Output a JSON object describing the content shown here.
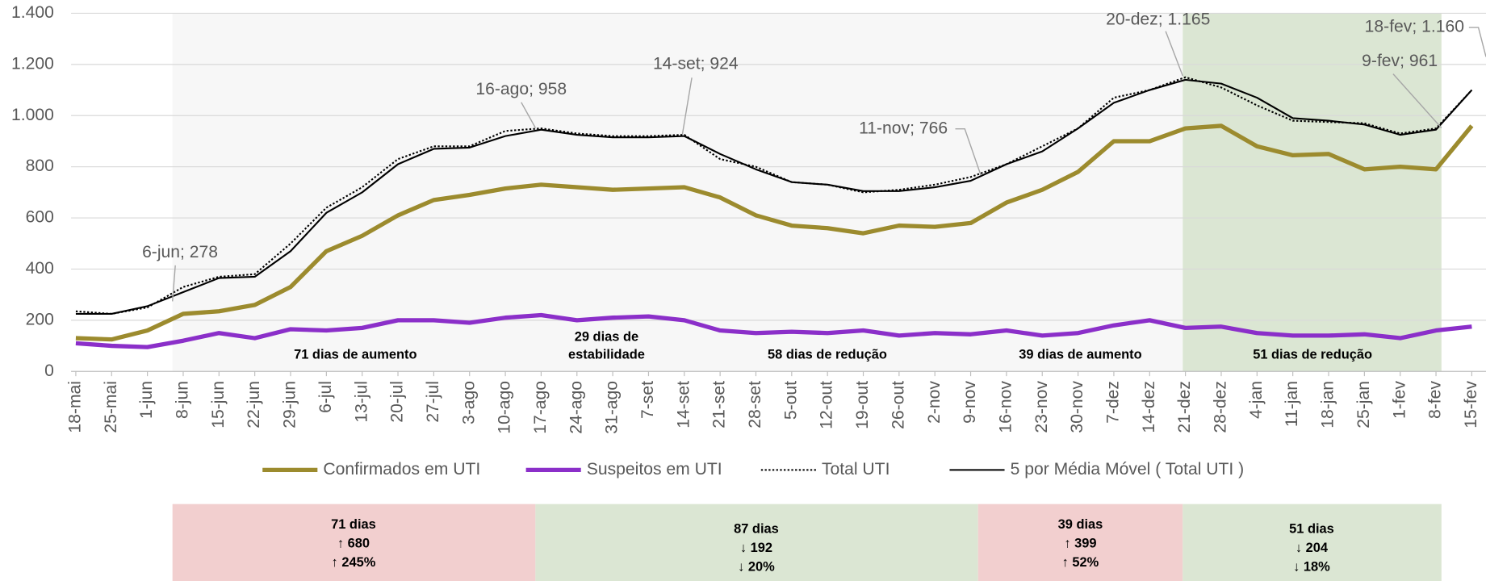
{
  "chart_data": {
    "type": "line",
    "categories": [
      "18-mai",
      "25-mai",
      "1-jun",
      "8-jun",
      "15-jun",
      "22-jun",
      "29-jun",
      "6-jul",
      "13-jul",
      "20-jul",
      "27-jul",
      "3-ago",
      "10-ago",
      "17-ago",
      "24-ago",
      "31-ago",
      "7-set",
      "14-set",
      "21-set",
      "28-set",
      "5-out",
      "12-out",
      "19-out",
      "26-out",
      "2-nov",
      "9-nov",
      "16-nov",
      "23-nov",
      "30-nov",
      "7-dez",
      "14-dez",
      "21-dez",
      "28-dez",
      "4-jan",
      "11-jan",
      "18-jan",
      "25-jan",
      "1-fev",
      "8-fev",
      "15-fev"
    ],
    "series": [
      {
        "name": "Confirmados em UTI",
        "color": "#9c8b2e",
        "line_style": "solid",
        "values": [
          130,
          125,
          160,
          225,
          235,
          260,
          330,
          470,
          530,
          610,
          670,
          690,
          715,
          730,
          720,
          710,
          715,
          720,
          680,
          610,
          570,
          560,
          540,
          570,
          565,
          580,
          660,
          710,
          780,
          900,
          900,
          950,
          960,
          880,
          845,
          850,
          790,
          800,
          790,
          960
        ]
      },
      {
        "name": "Suspeitos em UTI",
        "color": "#8b2fc9",
        "line_style": "solid",
        "values": [
          110,
          100,
          95,
          120,
          150,
          130,
          165,
          160,
          170,
          200,
          200,
          190,
          210,
          220,
          200,
          210,
          215,
          200,
          160,
          150,
          155,
          150,
          160,
          140,
          150,
          145,
          160,
          140,
          150,
          180,
          200,
          170,
          175,
          150,
          140,
          140,
          145,
          130,
          160,
          175
        ]
      },
      {
        "name": "Total UTI",
        "color": "#000000",
        "line_style": "dotted",
        "values": [
          235,
          225,
          250,
          330,
          370,
          380,
          500,
          640,
          720,
          830,
          880,
          880,
          940,
          950,
          930,
          920,
          920,
          925,
          830,
          800,
          740,
          730,
          700,
          710,
          730,
          760,
          810,
          880,
          950,
          1070,
          1100,
          1150,
          1110,
          1040,
          980,
          975,
          970,
          930,
          950,
          1100
        ]
      },
      {
        "name": "5 por Média Móvel ( Total UTI )",
        "color": "#000000",
        "line_style": "thin",
        "values": [
          225,
          225,
          255,
          310,
          365,
          370,
          470,
          620,
          700,
          810,
          870,
          875,
          920,
          945,
          925,
          915,
          915,
          920,
          850,
          790,
          740,
          730,
          705,
          705,
          720,
          745,
          810,
          860,
          950,
          1050,
          1100,
          1140,
          1125,
          1070,
          990,
          980,
          965,
          925,
          945,
          1100
        ]
      }
    ],
    "ylim": [
      0,
      1400
    ],
    "yticks": [
      0,
      200,
      400,
      600,
      800,
      {
        "value": 1000,
        "label": "1.000"
      },
      {
        "value": 1200,
        "label": "1.200"
      },
      {
        "value": 1400,
        "label": "1.400"
      }
    ],
    "grid": true,
    "annotations": [
      "6-jun;  278",
      "16-ago;  958",
      "14-set;  924",
      "11-nov;  766",
      "20-dez;  1.165",
      "18-fev;  1.160",
      "9-fev;  961"
    ],
    "period_labels": [
      [
        "71 dias de aumento"
      ],
      [
        "29 dias de",
        "estabilidade"
      ],
      [
        "58 dias de redução"
      ],
      [
        "39 dias de aumento"
      ],
      [
        "51 dias de redução"
      ]
    ],
    "period_boxes": [
      [
        "71 dias",
        "↑ 680",
        "↑ 245%"
      ],
      [
        "87 dias",
        "↓ 192",
        "↓ 20%"
      ],
      [
        "39 dias",
        "↑ 399",
        "↑ 52%"
      ],
      [
        "51 dias",
        "↓ 204",
        "↓ 18%"
      ]
    ]
  }
}
